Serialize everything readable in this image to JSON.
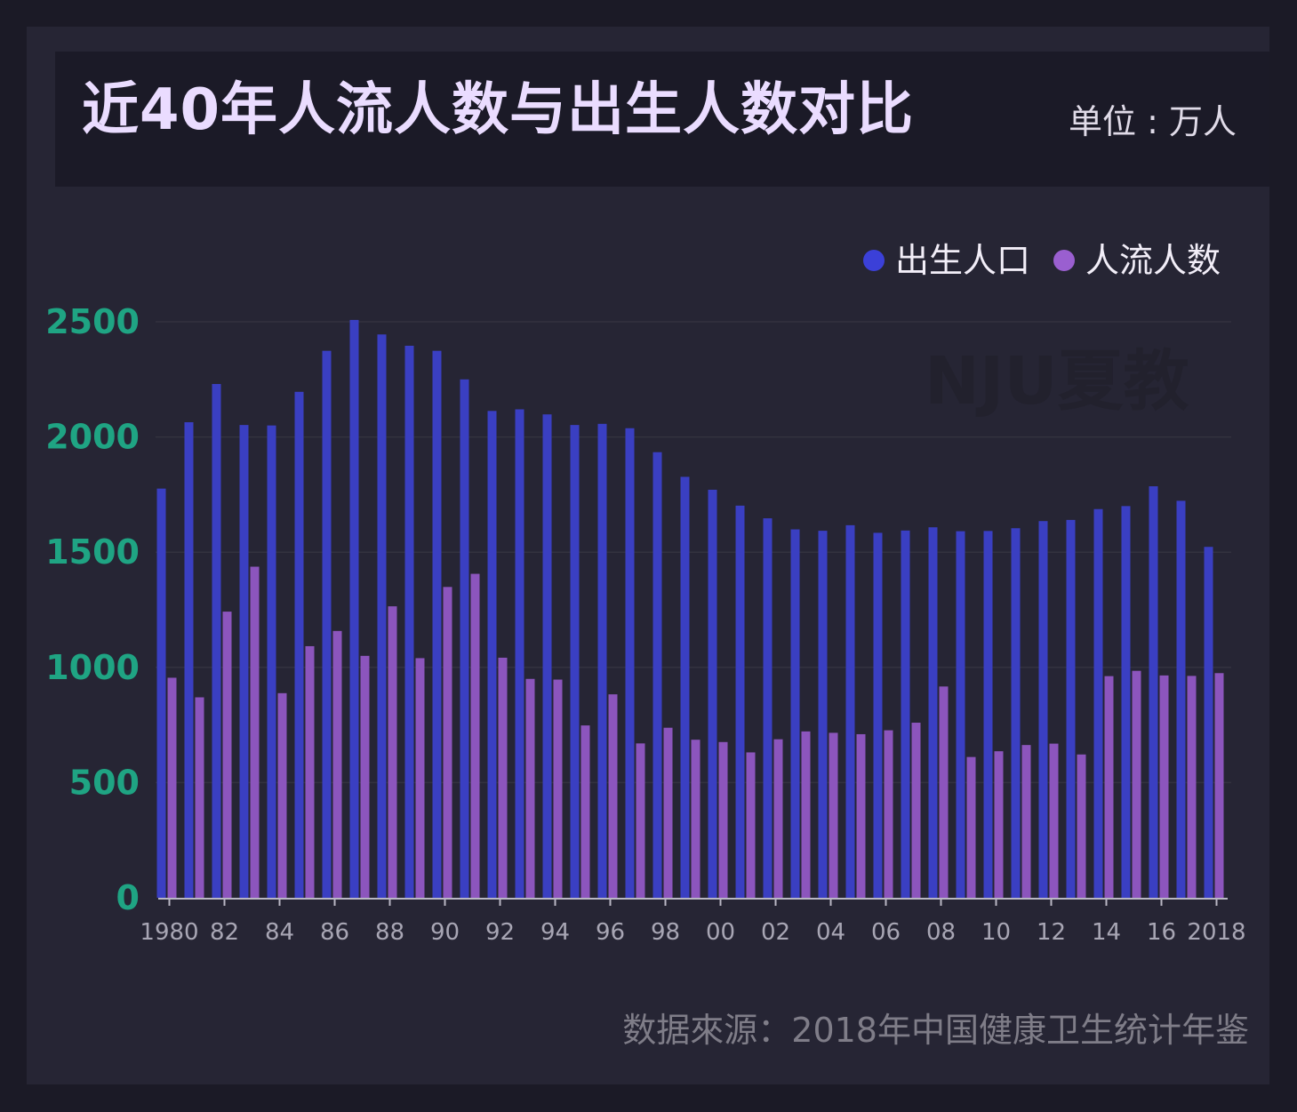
{
  "title": "近40年人流人数与出生人数对比",
  "unit_label": "单位 : 万人",
  "source": "数据來源：2018年中国健康卫生统计年鉴",
  "watermark": "NJU夏教",
  "colors": {
    "birth": "#3a3fc2",
    "abortion": "#8c55bd",
    "ytick": "#1fa483",
    "title": "#eadcff"
  },
  "chart_data": {
    "type": "bar",
    "title": "近40年人流人数与出生人数对比",
    "xlabel": "",
    "ylabel": "",
    "ylim": [
      0,
      2500
    ],
    "yticks": [
      0,
      500,
      1000,
      1500,
      2000,
      2500
    ],
    "legend_position": "top-right",
    "grid": true,
    "categories": [
      "1980",
      "1981",
      "1982",
      "1983",
      "1984",
      "1985",
      "1986",
      "1987",
      "1988",
      "1989",
      "1990",
      "1991",
      "1992",
      "1993",
      "1994",
      "1995",
      "1996",
      "1997",
      "1998",
      "1999",
      "2000",
      "2001",
      "2002",
      "2003",
      "2004",
      "2005",
      "2006",
      "2007",
      "2008",
      "2009",
      "2010",
      "2011",
      "2012",
      "2013",
      "2014",
      "2015",
      "2016",
      "2017",
      "2018"
    ],
    "x_tick_labels": [
      {
        "index": 0,
        "label": "1980"
      },
      {
        "index": 2,
        "label": "82"
      },
      {
        "index": 4,
        "label": "84"
      },
      {
        "index": 6,
        "label": "86"
      },
      {
        "index": 8,
        "label": "88"
      },
      {
        "index": 10,
        "label": "90"
      },
      {
        "index": 12,
        "label": "92"
      },
      {
        "index": 14,
        "label": "94"
      },
      {
        "index": 16,
        "label": "96"
      },
      {
        "index": 18,
        "label": "98"
      },
      {
        "index": 20,
        "label": "00"
      },
      {
        "index": 22,
        "label": "02"
      },
      {
        "index": 24,
        "label": "04"
      },
      {
        "index": 26,
        "label": "06"
      },
      {
        "index": 28,
        "label": "08"
      },
      {
        "index": 30,
        "label": "10"
      },
      {
        "index": 32,
        "label": "12"
      },
      {
        "index": 34,
        "label": "14"
      },
      {
        "index": 36,
        "label": "16"
      },
      {
        "index": 38,
        "label": "2018"
      }
    ],
    "series": [
      {
        "name": "出生人口",
        "color": "#3a3fc2",
        "values": [
          1776,
          2064,
          2230,
          2052,
          2050,
          2196,
          2374,
          2508,
          2445,
          2396,
          2374,
          2250,
          2113,
          2120,
          2098,
          2052,
          2057,
          2038,
          1934,
          1827,
          1771,
          1702,
          1647,
          1599,
          1593,
          1617,
          1584,
          1594,
          1608,
          1591,
          1592,
          1604,
          1635,
          1640,
          1687,
          1700,
          1786,
          1723,
          1523
        ]
      },
      {
        "name": "人流人数",
        "color": "#8c55bd",
        "values": [
          955,
          870,
          1242,
          1437,
          888,
          1092,
          1158,
          1050,
          1265,
          1040,
          1349,
          1406,
          1042,
          950,
          947,
          748,
          883,
          670,
          738,
          686,
          676,
          631,
          688,
          722,
          716,
          710,
          727,
          760,
          917,
          611,
          636,
          663,
          669,
          622,
          962,
          985,
          965,
          963,
          975
        ]
      }
    ]
  }
}
